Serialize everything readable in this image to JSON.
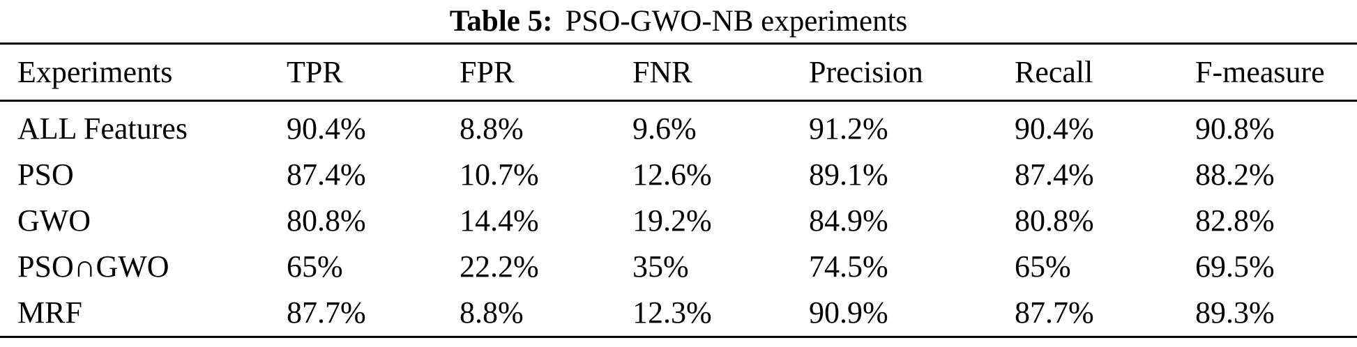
{
  "caption": {
    "label": "Table 5:",
    "text": "PSO-GWO-NB experiments"
  },
  "table": {
    "columns": [
      "Experiments",
      "TPR",
      "FPR",
      "FNR",
      "Precision",
      "Recall",
      "F-measure"
    ],
    "rows": [
      {
        "cells": [
          "ALL Features",
          "90.4%",
          "8.8%",
          "9.6%",
          "91.2%",
          "90.4%",
          "90.8%"
        ]
      },
      {
        "cells": [
          "PSO",
          "87.4%",
          "10.7%",
          "12.6%",
          "89.1%",
          "87.4%",
          "88.2%"
        ]
      },
      {
        "cells": [
          "GWO",
          "80.8%",
          "14.4%",
          "19.2%",
          "84.9%",
          "80.8%",
          "82.8%"
        ]
      },
      {
        "cells": [
          "PSO∩GWO",
          "65%",
          "22.2%",
          "35%",
          "74.5%",
          "65%",
          "69.5%"
        ]
      },
      {
        "cells": [
          "MRF",
          "87.7%",
          "8.8%",
          "12.3%",
          "90.9%",
          "87.7%",
          "89.3%"
        ]
      }
    ]
  },
  "colors": {
    "text": "#000000",
    "background": "#ffffff",
    "rule": "#000000"
  }
}
